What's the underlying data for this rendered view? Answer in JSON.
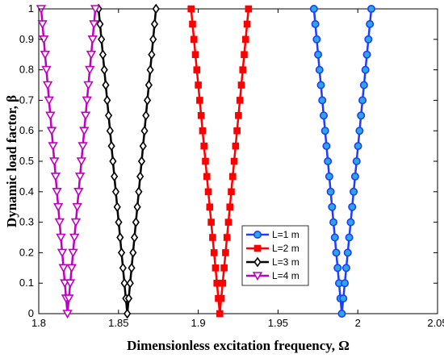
{
  "chart_data": {
    "type": "line",
    "xlabel": "Dimensionless excitation frequency, Ω",
    "ylabel": "Dynamic load factor, β",
    "xlim": [
      1.8,
      2.05
    ],
    "ylim": [
      0,
      1
    ],
    "xticks": [
      "1.8",
      "1.85",
      "1.9",
      "1.95",
      "2",
      "2.05"
    ],
    "yticks": [
      "0",
      "0.1",
      "0.2",
      "0.3",
      "0.4",
      "0.5",
      "0.6",
      "0.7",
      "0.8",
      "0.9",
      "1"
    ],
    "grid": false,
    "legend_position": "bottom-right-inside",
    "series": [
      {
        "name": "L=1 m",
        "color": "#1f3cff",
        "marker": "circle",
        "marker_fill": "#2aa8e0",
        "vertex_x": 1.99,
        "left_x_at_top": 1.9725,
        "right_x_at_top": 2.0085
      },
      {
        "name": "L=2 m",
        "color": "#ff0000",
        "marker": "square",
        "marker_fill": "#ff0000",
        "vertex_x": 1.9135,
        "left_x_at_top": 1.8955,
        "right_x_at_top": 1.9315
      },
      {
        "name": "L=3 m",
        "color": "#000000",
        "marker": "diamond",
        "marker_fill": "#ffffff",
        "vertex_x": 1.8555,
        "left_x_at_top": 1.8375,
        "right_x_at_top": 1.8735
      },
      {
        "name": "L=4 m",
        "color": "#c000c0",
        "marker": "triangle-down",
        "marker_fill": "#ffffff",
        "vertex_x": 1.818,
        "left_x_at_top": 1.8015,
        "right_x_at_top": 1.8355
      }
    ]
  }
}
